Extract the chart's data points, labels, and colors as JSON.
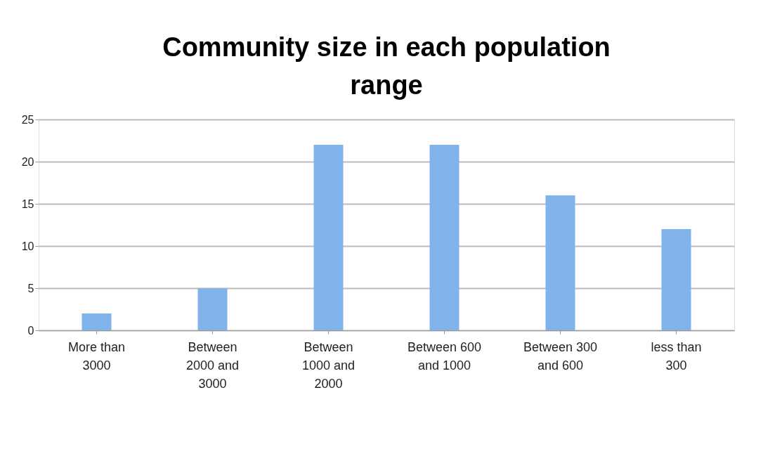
{
  "chart_data": {
    "type": "bar",
    "title": "Community size in each population range",
    "categories": [
      "More than 3000",
      "Between 2000 and 3000",
      "Between 1000 and 2000",
      "Between 600 and 1000",
      "Between 300 and 600",
      "less than 300"
    ],
    "values": [
      2,
      5,
      22,
      22,
      16,
      12
    ],
    "color": "#7fb3ea",
    "ylim": [
      0,
      25
    ],
    "yticks": [
      0,
      5,
      10,
      15,
      20,
      25
    ],
    "grid": "y"
  }
}
